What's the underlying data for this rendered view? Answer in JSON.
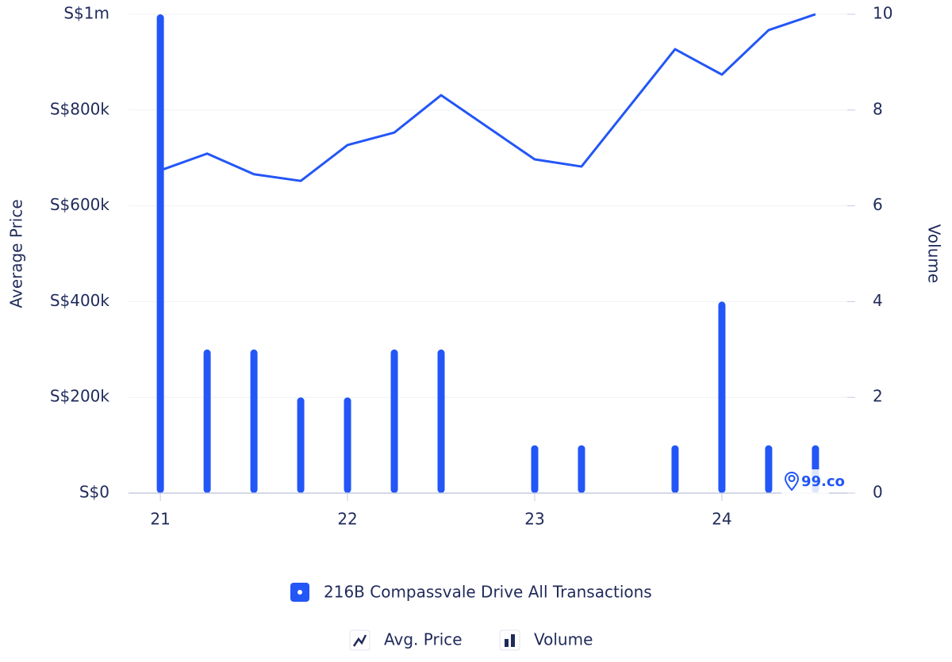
{
  "chart_data": {
    "type": "combo",
    "y_label": "Average Price",
    "y2_label": "Volume",
    "legend_title": "216B Compassvale Drive All Transactions",
    "watermark": "99.co",
    "xlim": [
      20.83,
      24.67
    ],
    "xticks": [
      21,
      22,
      23,
      24
    ],
    "ylim": [
      0,
      1000000
    ],
    "yticks": [
      {
        "value": 0,
        "label": "S$0"
      },
      {
        "value": 200000,
        "label": "S$200k"
      },
      {
        "value": 400000,
        "label": "S$400k"
      },
      {
        "value": 600000,
        "label": "S$600k"
      },
      {
        "value": 800000,
        "label": "S$800k"
      },
      {
        "value": 1000000,
        "label": "S$1m"
      }
    ],
    "y2lim": [
      0,
      10
    ],
    "y2ticks": [
      0,
      2,
      4,
      6,
      8,
      10
    ],
    "grid": true,
    "series": [
      {
        "name": "Avg. Price",
        "type": "line",
        "axis": "y",
        "color": "#2356f6",
        "x": [
          21,
          21.25,
          21.5,
          21.75,
          22,
          22.25,
          22.5,
          23,
          23.25,
          23.75,
          24,
          24.25,
          24.5
        ],
        "values": [
          674000,
          709000,
          666000,
          652000,
          727000,
          753000,
          831000,
          697000,
          682000,
          927000,
          874000,
          967000,
          1000000
        ]
      },
      {
        "name": "Volume",
        "type": "bar",
        "axis": "y2",
        "color": "#2356f6",
        "x": [
          21,
          21.25,
          21.5,
          21.75,
          22,
          22.25,
          22.5,
          23,
          23.25,
          23.75,
          24,
          24.25,
          24.5
        ],
        "values": [
          10,
          3,
          3,
          2,
          2,
          3,
          3,
          1,
          1,
          1,
          4,
          1,
          1
        ]
      }
    ]
  }
}
